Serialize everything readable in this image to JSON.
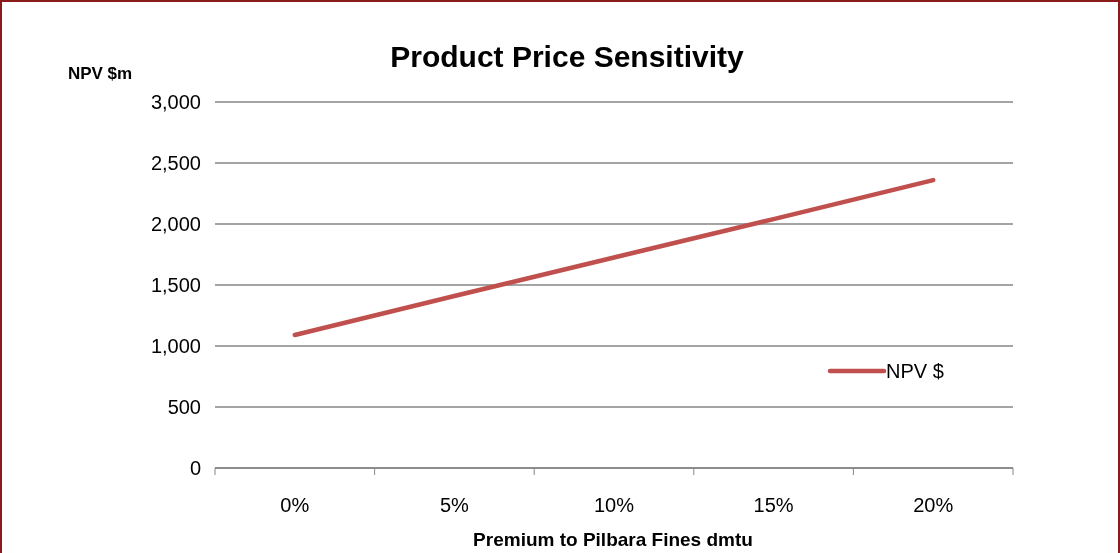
{
  "chart_data": {
    "type": "line",
    "title": "Product Price Sensitivity",
    "ylabel": "NPV $m",
    "xlabel": "Premium to Pilbara Fines dmtu",
    "categories": [
      "0%",
      "5%",
      "10%",
      "15%",
      "20%"
    ],
    "series": [
      {
        "name": "NPV $",
        "color": "#c0504d",
        "values": [
          1090,
          1410,
          1725,
          2040,
          2360
        ]
      }
    ],
    "ylim": [
      0,
      3000
    ],
    "yticks": [
      0,
      {
        "value": 500,
        "label": "500"
      },
      {
        "value": 1000,
        "label": "1,000"
      },
      {
        "value": 1500,
        "label": "1,500"
      },
      {
        "value": 2000,
        "label": "2,000"
      },
      {
        "value": 2500,
        "label": "2,500"
      },
      {
        "value": 3000,
        "label": "3,000"
      }
    ],
    "grid": "y",
    "legend": "right",
    "marker": "none",
    "line_style": "solid"
  }
}
